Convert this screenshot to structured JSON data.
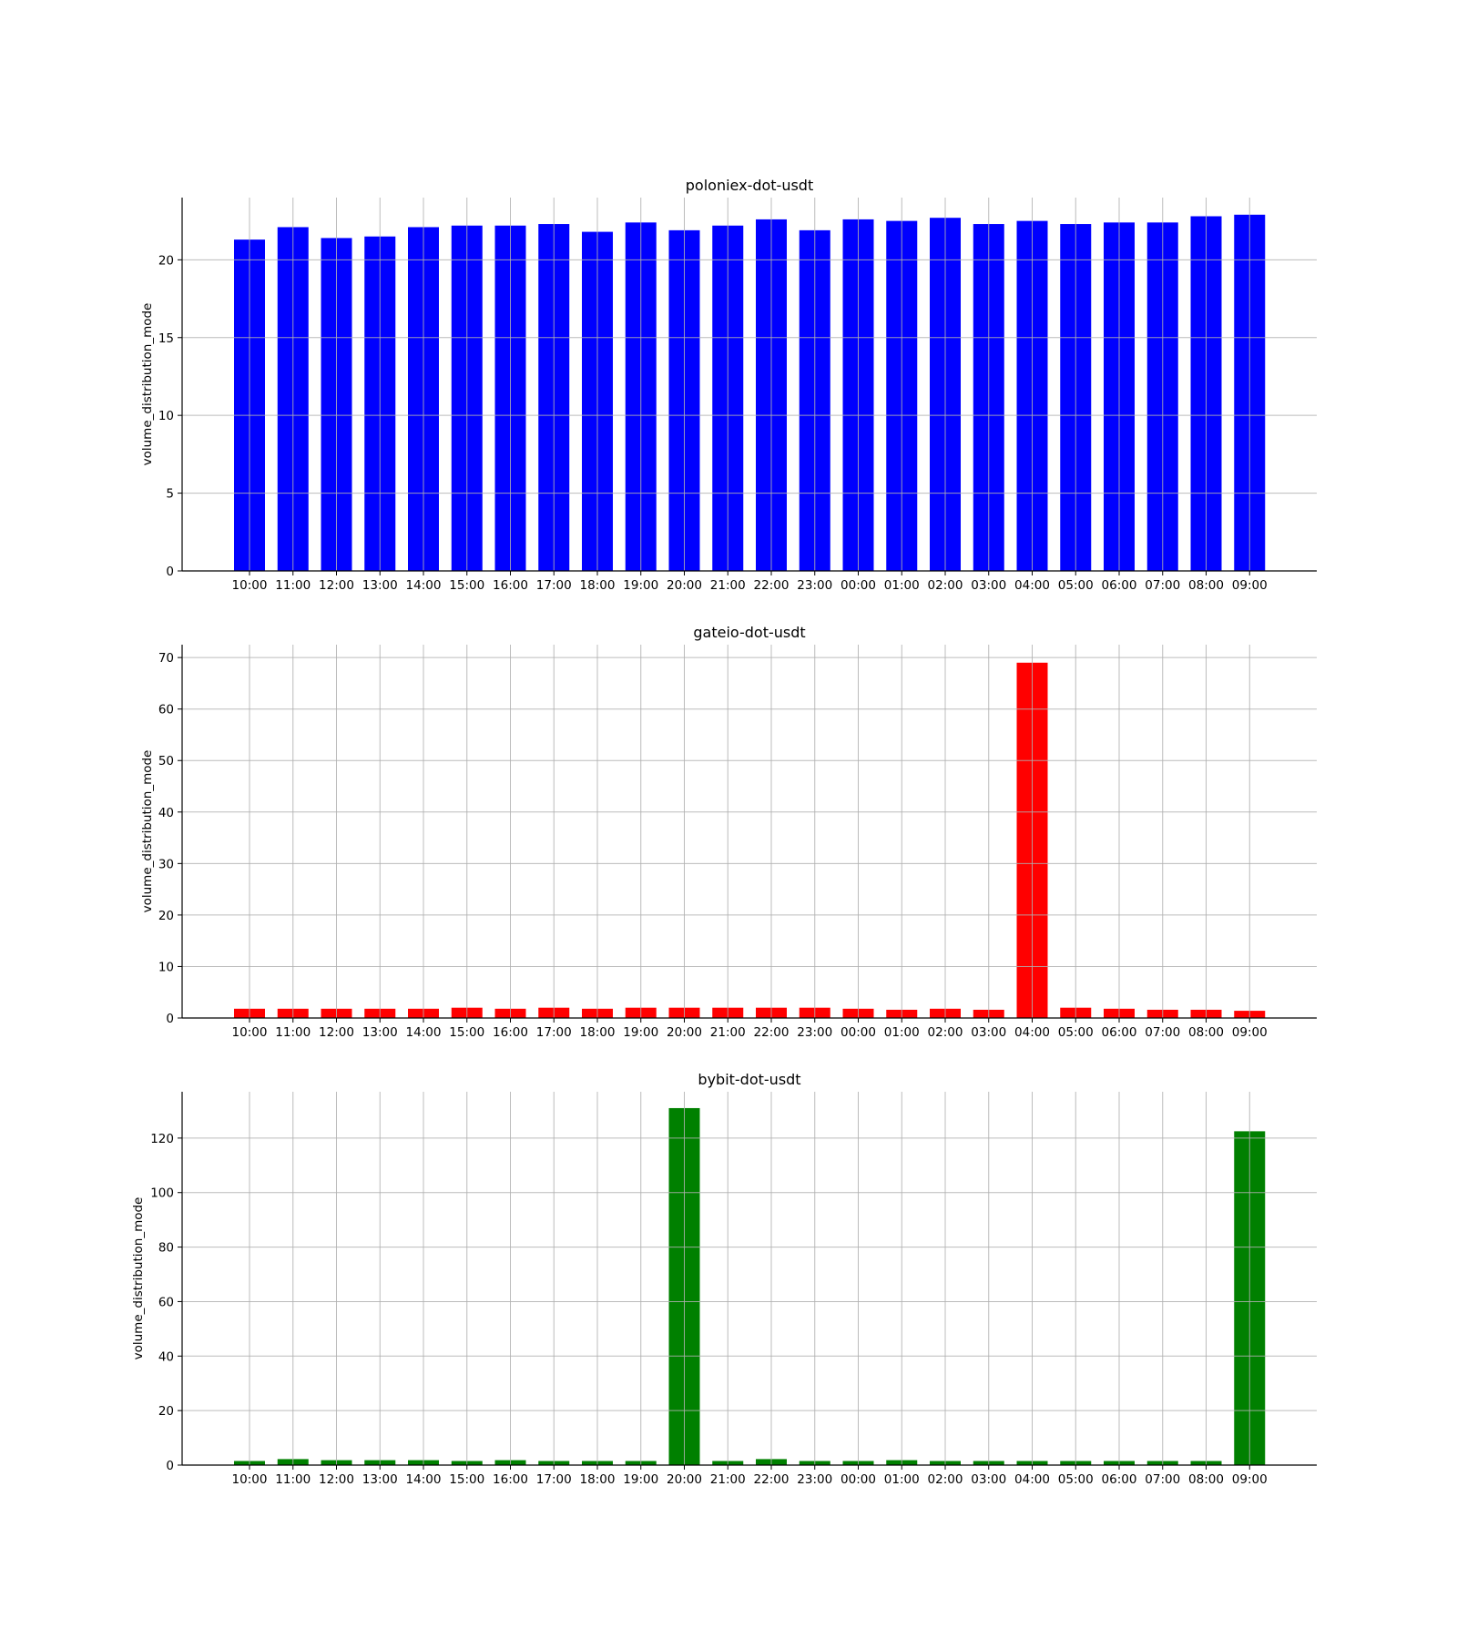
{
  "chart_data": [
    {
      "type": "bar",
      "title": "poloniex-dot-usdt",
      "ylabel": "volume_distribution_mode",
      "xlabel": "",
      "color": "#0000ff",
      "grid": true,
      "ylim": [
        0,
        24
      ],
      "yticks": [
        0,
        5,
        10,
        15,
        20
      ],
      "categories": [
        "10:00",
        "11:00",
        "12:00",
        "13:00",
        "14:00",
        "15:00",
        "16:00",
        "17:00",
        "18:00",
        "19:00",
        "20:00",
        "21:00",
        "22:00",
        "23:00",
        "00:00",
        "01:00",
        "02:00",
        "03:00",
        "04:00",
        "05:00",
        "06:00",
        "07:00",
        "08:00",
        "09:00"
      ],
      "values": [
        21.3,
        22.1,
        21.4,
        21.5,
        22.1,
        22.2,
        22.2,
        22.3,
        21.8,
        22.4,
        21.9,
        22.2,
        22.6,
        21.9,
        22.6,
        22.5,
        22.7,
        22.3,
        22.5,
        22.3,
        22.4,
        22.4,
        22.8,
        22.9
      ]
    },
    {
      "type": "bar",
      "title": "gateio-dot-usdt",
      "ylabel": "volume_distribution_mode",
      "xlabel": "",
      "color": "#ff0000",
      "grid": true,
      "ylim": [
        0,
        72.5
      ],
      "yticks": [
        0,
        10,
        20,
        30,
        40,
        50,
        60,
        70
      ],
      "categories": [
        "10:00",
        "11:00",
        "12:00",
        "13:00",
        "14:00",
        "15:00",
        "16:00",
        "17:00",
        "18:00",
        "19:00",
        "20:00",
        "21:00",
        "22:00",
        "23:00",
        "00:00",
        "01:00",
        "02:00",
        "03:00",
        "04:00",
        "05:00",
        "06:00",
        "07:00",
        "08:00",
        "09:00"
      ],
      "values": [
        1.8,
        1.8,
        1.8,
        1.8,
        1.8,
        2.0,
        1.8,
        2.0,
        1.8,
        2.0,
        2.0,
        2.0,
        2.0,
        2.0,
        1.8,
        1.6,
        1.8,
        1.6,
        69.0,
        2.0,
        1.8,
        1.6,
        1.6,
        1.4
      ]
    },
    {
      "type": "bar",
      "title": "bybit-dot-usdt",
      "ylabel": "volume_distribution_mode",
      "xlabel": "",
      "color": "#008000",
      "grid": true,
      "ylim": [
        0,
        137
      ],
      "yticks": [
        0,
        20,
        40,
        60,
        80,
        100,
        120
      ],
      "categories": [
        "10:00",
        "11:00",
        "12:00",
        "13:00",
        "14:00",
        "15:00",
        "16:00",
        "17:00",
        "18:00",
        "19:00",
        "20:00",
        "21:00",
        "22:00",
        "23:00",
        "00:00",
        "01:00",
        "02:00",
        "03:00",
        "04:00",
        "05:00",
        "06:00",
        "07:00",
        "08:00",
        "09:00"
      ],
      "values": [
        1.5,
        2.2,
        1.8,
        1.8,
        1.8,
        1.5,
        1.8,
        1.5,
        1.5,
        1.5,
        131.0,
        1.5,
        2.2,
        1.5,
        1.5,
        1.8,
        1.5,
        1.5,
        1.5,
        1.5,
        1.5,
        1.5,
        1.5,
        122.5
      ]
    }
  ]
}
